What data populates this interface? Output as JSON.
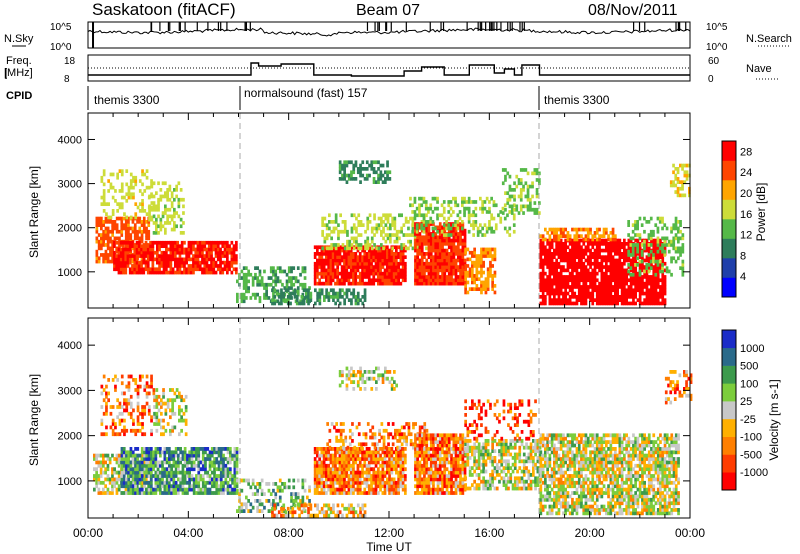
{
  "header": {
    "station": "Saskatoon (fitACF)",
    "beam": "Beam 07",
    "date": "08/Nov/2011"
  },
  "top_panels": {
    "nsky_label": "N.Sky",
    "nsky_ticks": [
      "10^5",
      "10^0"
    ],
    "nsearch_label": "N.Search",
    "nsearch_ticks": [
      "10^5",
      "10^0"
    ],
    "freq_label": "Freq.",
    "freq_unit": "[MHz]",
    "freq_ticks": [
      "18",
      "8"
    ],
    "nave_label": "Nave",
    "nave_ticks": [
      "60",
      "0"
    ],
    "cpid_label": "CPID",
    "cpid_segments": [
      {
        "label": "themis 3300",
        "start_h": 0,
        "end_h": 6
      },
      {
        "label": "normalsound (fast) 157",
        "start_h": 6,
        "end_h": 18
      },
      {
        "label": "themis 3300",
        "start_h": 18,
        "end_h": 24
      }
    ],
    "freq_steps": [
      {
        "start_h": 0,
        "end_h": 6.5,
        "mhz": 10
      },
      {
        "start_h": 6.5,
        "end_h": 6.8,
        "mhz": 16
      },
      {
        "start_h": 6.8,
        "end_h": 7.7,
        "mhz": 14.5
      },
      {
        "start_h": 7.7,
        "end_h": 9.0,
        "mhz": 15.5
      },
      {
        "start_h": 9.0,
        "end_h": 10.5,
        "mhz": 10
      },
      {
        "start_h": 10.5,
        "end_h": 12.6,
        "mhz": 9.5
      },
      {
        "start_h": 12.6,
        "end_h": 13.3,
        "mhz": 12
      },
      {
        "start_h": 13.3,
        "end_h": 14.2,
        "mhz": 14
      },
      {
        "start_h": 14.2,
        "end_h": 15.2,
        "mhz": 10
      },
      {
        "start_h": 15.2,
        "end_h": 16.2,
        "mhz": 15
      },
      {
        "start_h": 16.2,
        "end_h": 16.6,
        "mhz": 11
      },
      {
        "start_h": 16.6,
        "end_h": 17.0,
        "mhz": 13
      },
      {
        "start_h": 17.0,
        "end_h": 17.3,
        "mhz": 10
      },
      {
        "start_h": 17.3,
        "end_h": 18.0,
        "mhz": 15
      },
      {
        "start_h": 18.0,
        "end_h": 24.0,
        "mhz": 10
      }
    ]
  },
  "chart_data": [
    {
      "type": "heatmap",
      "ylabel": "Slant Range [km]",
      "yticks": [
        1000,
        2000,
        3000,
        4000
      ],
      "ylim": [
        180,
        4600
      ],
      "xlim": [
        0,
        24
      ],
      "colorbar": {
        "label": "Power [dB]",
        "ticks": [
          4,
          8,
          12,
          16,
          20,
          24,
          28
        ],
        "range": [
          0,
          30
        ],
        "colors": [
          "#0000ff",
          "#1f3faa",
          "#2e7d5b",
          "#55b848",
          "#cddc39",
          "#ffa500",
          "#ff4500",
          "#ff0000"
        ]
      },
      "regions": [
        {
          "t0": 0.3,
          "t1": 2.4,
          "r0": 1200,
          "r1": 2200,
          "level": 24,
          "density": 0.7
        },
        {
          "t0": 1.0,
          "t1": 5.9,
          "r0": 950,
          "r1": 1650,
          "level": 27,
          "density": 0.85
        },
        {
          "t0": 0.5,
          "t1": 2.5,
          "r0": 2200,
          "r1": 3300,
          "level": 17,
          "density": 0.3
        },
        {
          "t0": 2.4,
          "t1": 3.8,
          "r0": 1850,
          "r1": 3000,
          "level": 16,
          "density": 0.45
        },
        {
          "t0": 5.9,
          "t1": 8.8,
          "r0": 300,
          "r1": 1100,
          "level": 12,
          "density": 0.45
        },
        {
          "t0": 7.3,
          "t1": 11.0,
          "r0": 250,
          "r1": 600,
          "level": 10,
          "density": 0.55
        },
        {
          "t0": 9.0,
          "t1": 12.6,
          "r0": 700,
          "r1": 1600,
          "level": 27,
          "density": 0.9
        },
        {
          "t0": 9.3,
          "t1": 13.5,
          "r0": 1500,
          "r1": 2300,
          "level": 16,
          "density": 0.45
        },
        {
          "t0": 10.0,
          "t1": 12.0,
          "r0": 3000,
          "r1": 3500,
          "level": 10,
          "density": 0.45
        },
        {
          "t0": 13.0,
          "t1": 15.0,
          "r0": 700,
          "r1": 2100,
          "level": 26,
          "density": 0.9
        },
        {
          "t0": 15.0,
          "t1": 16.2,
          "r0": 500,
          "r1": 1500,
          "level": 22,
          "density": 0.6
        },
        {
          "t0": 12.8,
          "t1": 17.0,
          "r0": 1800,
          "r1": 2700,
          "level": 15,
          "density": 0.35
        },
        {
          "t0": 16.5,
          "t1": 18.0,
          "r0": 2300,
          "r1": 3300,
          "level": 14,
          "density": 0.4
        },
        {
          "t0": 18.0,
          "t1": 23.0,
          "r0": 250,
          "r1": 1700,
          "level": 29,
          "density": 0.85
        },
        {
          "t0": 18.0,
          "t1": 21.0,
          "r0": 1700,
          "r1": 2000,
          "level": 22,
          "density": 0.5
        },
        {
          "t0": 21.5,
          "t1": 23.7,
          "r0": 900,
          "r1": 2200,
          "level": 14,
          "density": 0.35
        },
        {
          "t0": 23.2,
          "t1": 24.0,
          "r0": 2700,
          "r1": 3400,
          "level": 18,
          "density": 0.45
        }
      ]
    },
    {
      "type": "heatmap",
      "ylabel": "Slant Range [km]",
      "yticks": [
        1000,
        2000,
        3000,
        4000
      ],
      "ylim": [
        180,
        4600
      ],
      "xlim": [
        0,
        24
      ],
      "colorbar": {
        "label": "Velocity [m s-1]",
        "ticks": [
          "1000",
          "500",
          "100",
          "25",
          "-25",
          "-100",
          "-500",
          "-1000"
        ],
        "colors": [
          "#1a2cc8",
          "#2a6a8a",
          "#3c9a4c",
          "#7ccd3c",
          "#c8c8c8",
          "#ffb000",
          "#ff7f00",
          "#ff3c00",
          "#ff0000"
        ]
      },
      "regions": [
        {
          "t0": 0.2,
          "t1": 2.5,
          "r0": 700,
          "r1": 1600,
          "level": 4,
          "density": 0.6
        },
        {
          "t0": 1.3,
          "t1": 5.9,
          "r0": 700,
          "r1": 1700,
          "level": 2,
          "density": 0.8
        },
        {
          "t0": 0.5,
          "t1": 2.6,
          "r0": 2000,
          "r1": 3300,
          "level": 6,
          "density": 0.35
        },
        {
          "t0": 2.6,
          "t1": 3.9,
          "r0": 2000,
          "r1": 3000,
          "level": 4,
          "density": 0.4
        },
        {
          "t0": 5.9,
          "t1": 8.8,
          "r0": 300,
          "r1": 1000,
          "level": 3,
          "density": 0.35
        },
        {
          "t0": 7.3,
          "t1": 11.0,
          "r0": 200,
          "r1": 500,
          "level": 5,
          "density": 0.5
        },
        {
          "t0": 9.0,
          "t1": 12.6,
          "r0": 700,
          "r1": 1700,
          "level": 6,
          "density": 0.85
        },
        {
          "t0": 9.5,
          "t1": 13.5,
          "r0": 1700,
          "r1": 2300,
          "level": 6,
          "density": 0.35
        },
        {
          "t0": 10.0,
          "t1": 12.3,
          "r0": 3000,
          "r1": 3500,
          "level": 4,
          "density": 0.35
        },
        {
          "t0": 13.0,
          "t1": 15.0,
          "r0": 700,
          "r1": 2000,
          "level": 6,
          "density": 0.85
        },
        {
          "t0": 15.0,
          "t1": 18.0,
          "r0": 800,
          "r1": 1900,
          "level": 4,
          "density": 0.6
        },
        {
          "t0": 15.0,
          "t1": 17.8,
          "r0": 1900,
          "r1": 2800,
          "level": 7,
          "density": 0.3
        },
        {
          "t0": 18.0,
          "t1": 23.5,
          "r0": 250,
          "r1": 2000,
          "level": 4,
          "density": 0.75
        },
        {
          "t0": 23.0,
          "t1": 24.0,
          "r0": 2700,
          "r1": 3400,
          "level": 6,
          "density": 0.4
        }
      ]
    }
  ],
  "xaxis": {
    "ticks": [
      "00:00",
      "04:00",
      "08:00",
      "12:00",
      "16:00",
      "20:00",
      "00:00"
    ],
    "label": "Time UT"
  }
}
